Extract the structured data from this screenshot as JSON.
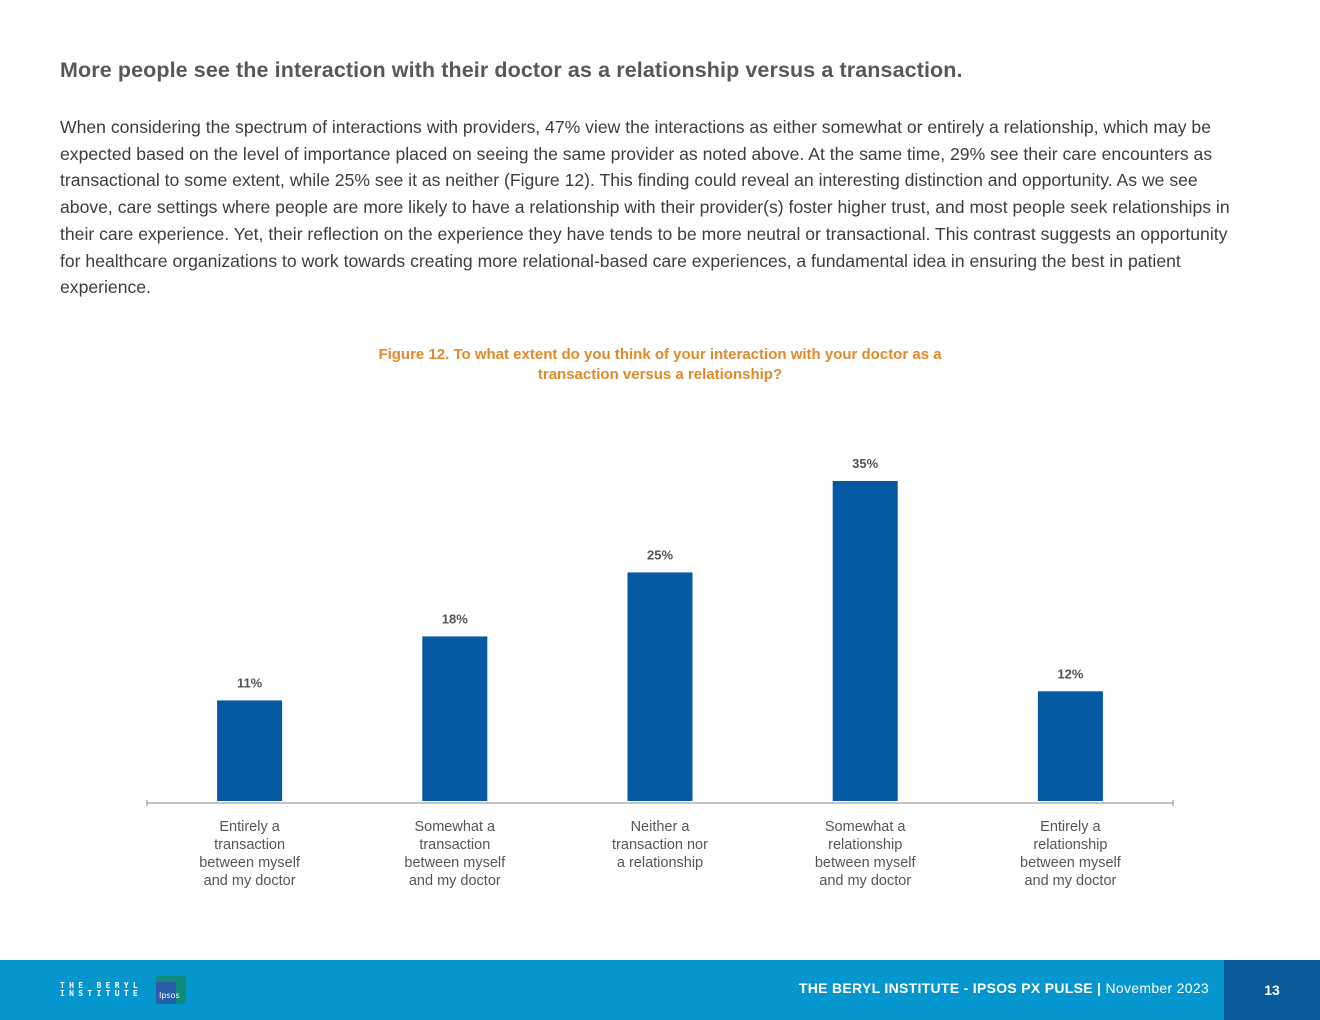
{
  "heading": "More people see the interaction with their doctor as a relationship versus a transaction.",
  "body": "When considering the spectrum of interactions with providers, 47% view the interactions as either somewhat or entirely a relationship, which may be expected based on the level of importance placed on seeing the same provider as noted above. At the same time, 29% see their care encounters as transactional to some extent, while 25% see it as neither (Figure 12). This finding could reveal an interesting distinction and opportunity. As we see above, care settings where people are more likely to have a relationship with their provider(s) foster higher trust, and most people seek relationships in their care experience. Yet, their reflection on the experience they have tends to be more neutral or transactional. This contrast suggests an opportunity for healthcare organizations to work towards creating more relational-based care experiences, a fundamental idea in ensuring the best in patient experience.",
  "figure": {
    "title_line1": "Figure 12. To what extent do you think of your interaction with your doctor as a",
    "title_line2": "transaction versus a relationship?"
  },
  "chart_data": {
    "type": "bar",
    "title": "Figure 12. To what extent do you think of your interaction with your doctor as a transaction versus a relationship?",
    "categories": [
      [
        "Entirely a",
        "transaction",
        "between myself",
        "and my doctor"
      ],
      [
        "Somewhat a",
        "transaction",
        "between myself",
        "and my doctor"
      ],
      [
        "Neither a",
        "transaction nor",
        "a relationship"
      ],
      [
        "Somewhat a",
        "relationship",
        "between myself",
        "and my doctor"
      ],
      [
        "Entirely a",
        "relationship",
        "between myself",
        "and my doctor"
      ]
    ],
    "values": [
      11,
      18,
      25,
      35,
      12
    ],
    "value_labels": [
      "11%",
      "18%",
      "25%",
      "35%",
      "12%"
    ],
    "unit": "%",
    "xlabel": "",
    "ylabel": "",
    "ylim": [
      0,
      35
    ],
    "grid": false,
    "bar_color": "#0559a3"
  },
  "footer": {
    "report": "THE BERYL INSTITUTE - IPSOS PX PULSE | ",
    "date": "November 2023",
    "page": "13",
    "logo_beryl_line1": "THE BERYL",
    "logo_beryl_line2": "INSTITUTE",
    "logo_ipsos": "Ipsos"
  }
}
